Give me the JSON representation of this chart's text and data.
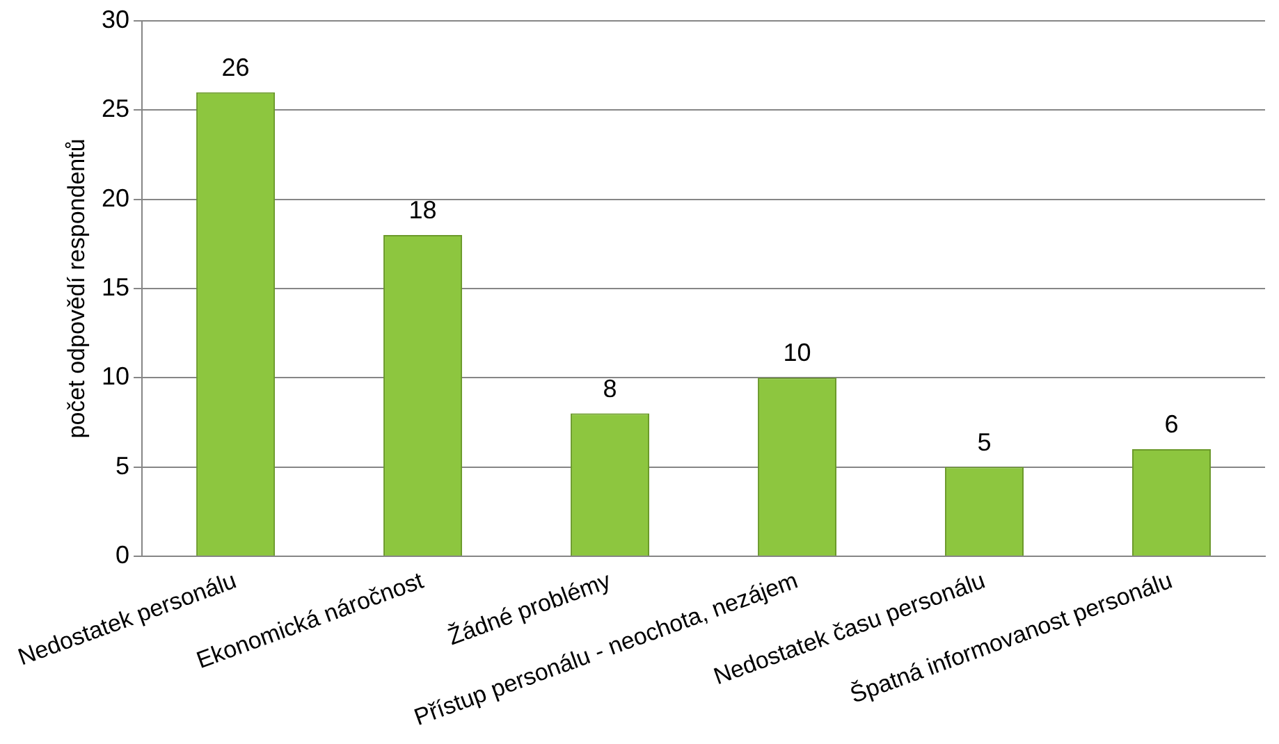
{
  "chart_data": {
    "type": "bar",
    "ylabel": "počet odpovědí respondentů",
    "categories": [
      "Nedostatek personálu",
      "Ekonomická náročnost",
      "Žádné problémy",
      "Přístup personálu - neochota, nezájem",
      "Nedostatek času personálu",
      "Špatná informovanost personálu"
    ],
    "values": [
      26,
      18,
      8,
      10,
      5,
      6
    ],
    "color": "#8dc63f",
    "ylim": [
      0,
      30
    ],
    "yticks": [
      0,
      5,
      10,
      15,
      20,
      25,
      30
    ],
    "grid": "y",
    "data_labels": true,
    "legend": false
  }
}
